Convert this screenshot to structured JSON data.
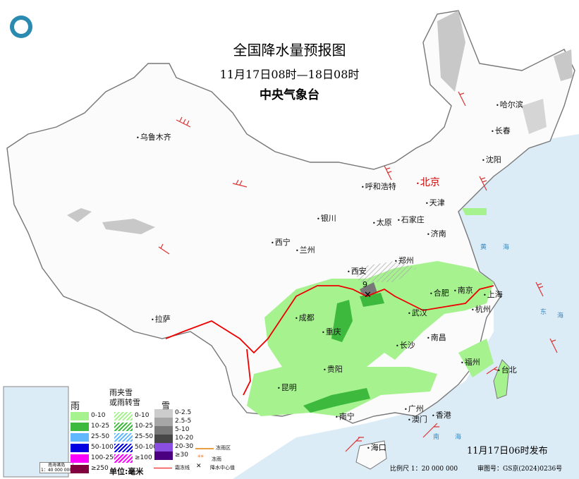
{
  "header": {
    "title": "全国降水量预报图",
    "period": "11月17日08时—18日08时",
    "agency": "中央气象台"
  },
  "cities": [
    {
      "name": "乌鲁木齐"
    },
    {
      "name": "哈尔滨"
    },
    {
      "name": "长春"
    },
    {
      "name": "沈阳"
    },
    {
      "name": "北京",
      "capital": true
    },
    {
      "name": "天津"
    },
    {
      "name": "呼和浩特"
    },
    {
      "name": "石家庄"
    },
    {
      "name": "太原"
    },
    {
      "name": "银川"
    },
    {
      "name": "济南"
    },
    {
      "name": "西宁"
    },
    {
      "name": "兰州"
    },
    {
      "name": "郑州"
    },
    {
      "name": "西安"
    },
    {
      "name": "合肥"
    },
    {
      "name": "南京"
    },
    {
      "name": "上海"
    },
    {
      "name": "杭州"
    },
    {
      "name": "武汉"
    },
    {
      "name": "成都"
    },
    {
      "name": "重庆"
    },
    {
      "name": "拉萨"
    },
    {
      "name": "南昌"
    },
    {
      "name": "长沙"
    },
    {
      "name": "福州"
    },
    {
      "name": "台北"
    },
    {
      "name": "贵阳"
    },
    {
      "name": "昆明"
    },
    {
      "name": "南宁"
    },
    {
      "name": "广州"
    },
    {
      "name": "澳门"
    },
    {
      "name": "香港"
    },
    {
      "name": "海口"
    }
  ],
  "precip_center_value": "9",
  "legend": {
    "rain": {
      "title": "雨",
      "items": [
        {
          "label": "0-10",
          "color": "#a6f28f"
        },
        {
          "label": "10-25",
          "color": "#3dba3d"
        },
        {
          "label": "25-50",
          "color": "#61b8ff"
        },
        {
          "label": "50-100",
          "color": "#0000e1"
        },
        {
          "label": "100-250",
          "color": "#fa00fa"
        },
        {
          "label": "≥250",
          "color": "#800040"
        }
      ]
    },
    "sleet": {
      "title1": "雨夹雪",
      "title2": "或雨转雪",
      "items": [
        {
          "label": "0-10",
          "color": "#a6f28f"
        },
        {
          "label": "10-25",
          "color": "#3dba3d"
        },
        {
          "label": "25-50",
          "color": "#61b8ff"
        },
        {
          "label": "50-100",
          "color": "#0000e1"
        },
        {
          "label": "≥100",
          "color": "#fa00fa"
        }
      ]
    },
    "snow": {
      "title": "雪",
      "items": [
        {
          "label": "0-2.5",
          "color": "#cccccc"
        },
        {
          "label": "2.5-5",
          "color": "#a6a6a6"
        },
        {
          "label": "5-10",
          "color": "#787878"
        },
        {
          "label": "10-20",
          "color": "#474747"
        },
        {
          "label": "20-30",
          "color": "#8a4fe0"
        },
        {
          "label": "≥30",
          "color": "#4b0082"
        }
      ]
    },
    "unit": "单位:毫米",
    "frost_line": "霜冻线",
    "freezing_rain_area": "冻雨区",
    "freezing_rain": "冻雨",
    "precip_center": "降水中心值"
  },
  "inset": {
    "title": "南海诸岛",
    "scale": "1：40 000 000"
  },
  "footer": {
    "issued": "11月17日06时发布",
    "scale": "比例尺 1：20 000 000",
    "review_no": "审图号：GS京(2024)0236号"
  },
  "sea_labels": [
    "黄",
    "海",
    "东",
    "海",
    "南",
    "海"
  ]
}
